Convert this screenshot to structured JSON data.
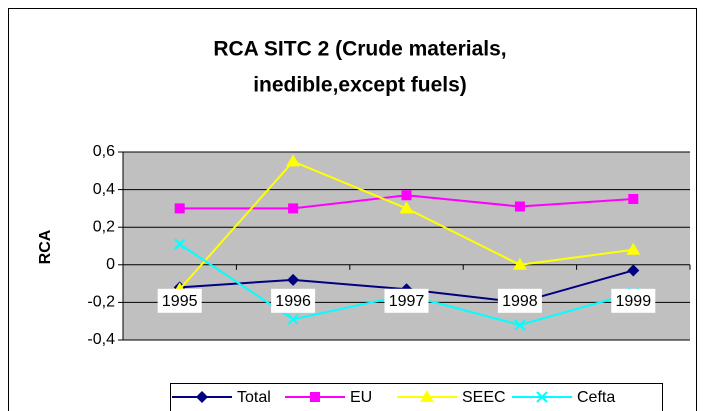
{
  "chart_data": {
    "type": "line",
    "title": [
      "RCA SITC 2 (Crude materials,",
      "inedible,except fuels)"
    ],
    "y_label": "RCA",
    "categories": [
      "1995",
      "1996",
      "1997",
      "1998",
      "1999"
    ],
    "series": [
      {
        "name": "Total",
        "color": "#000080",
        "marker": "diamond",
        "values": [
          -0.12,
          -0.08,
          -0.13,
          -0.2,
          -0.03
        ]
      },
      {
        "name": "EU",
        "color": "#FF00FF",
        "marker": "square",
        "values": [
          0.3,
          0.3,
          0.37,
          0.31,
          0.35
        ]
      },
      {
        "name": "SEEC",
        "color": "#FFFF00",
        "marker": "triangle",
        "values": [
          -0.13,
          0.55,
          0.3,
          0.0,
          0.08
        ]
      },
      {
        "name": "Cefta",
        "color": "#00FFFF",
        "marker": "x",
        "values": [
          0.11,
          -0.29,
          -0.16,
          -0.32,
          -0.15
        ]
      }
    ],
    "ylim": [
      -0.4,
      0.6
    ],
    "yticks": [
      {
        "value": 0.6,
        "label": "0,6"
      },
      {
        "value": 0.4,
        "label": "0,4"
      },
      {
        "value": 0.2,
        "label": "0,2"
      },
      0,
      {
        "value": -0.2,
        "label": "-0,2"
      },
      {
        "value": -0.4,
        "label": "-0,4"
      }
    ],
    "grid": true,
    "legend": "bottom"
  }
}
